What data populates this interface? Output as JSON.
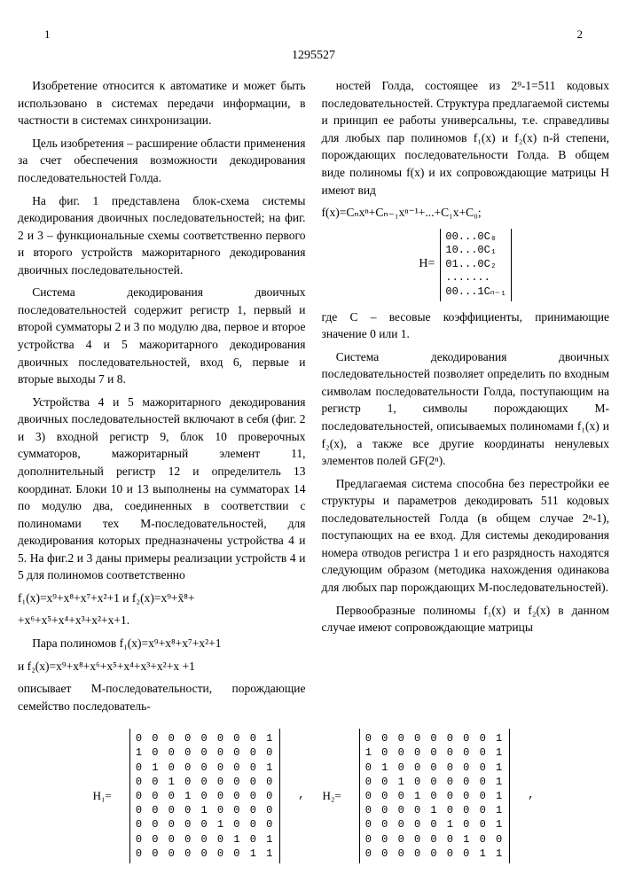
{
  "header": {
    "page_left": "1",
    "page_right": "2",
    "patent_number": "1295527"
  },
  "line_numbers": [
    "5",
    "10",
    "15",
    "20",
    "25",
    "30",
    "35",
    "40"
  ],
  "col1": {
    "p1": "Изобретение относится к автоматике и может быть использовано в системах передачи информации, в частности в системах синхронизации.",
    "p2": "Цель изобретения – расширение области применения за счет обеспечения возможности декодирования последовательностей Голда.",
    "p3": "На фиг. 1 представлена блок-схема системы декодирования двоичных последовательностей; на фиг. 2 и 3 – функциональные схемы соответственно первого и второго устройств мажоритарного декодирования двоичных последовательностей.",
    "p4": "Система декодирования двоичных последовательностей содержит регистр 1, первый и второй сумматоры 2 и 3 по модулю два, первое и второе устройства 4 и 5 мажоритарного декодирования двоичных последовательностей, вход 6, первые и вторые выходы 7 и 8.",
    "p5": "Устройства 4 и 5 мажоритарного декодирования двоичных последовательностей включают в себя (фиг. 2 и 3) входной регистр 9, блок 10 проверочных сумматоров, мажоритарный элемент 11, дополнительный регистр 12 и определитель 13 координат. Блоки 10 и 13 выполнены на сумматорах 14 по модулю два, соединенных в соответствии с полиномами тех М-последовательностей, для декодирования которых предназначены устройства 4 и 5. На фиг.2 и 3 даны примеры реализации устройств 4 и 5 для полиномов соответственно",
    "formula1": "f₁(x)=x⁹+x⁸+x⁷+x²+1 и f₂(x)=x⁹+x̄⁸+",
    "formula1b": "+x⁶+x⁵+x⁴+x³+x²+x+1.",
    "p6a": "Пара полиномов f₁(x)=x⁹+x⁸+x⁷+x²+1",
    "p6b": "и f₂(x)=x⁹+x⁸+x⁶+x⁵+x⁴+x³+x²+x +1",
    "p6c": "описывает М-последовательности, порождающие семейство последователь-"
  },
  "col2": {
    "p1": "ностей Голда, состоящее из 2⁹-1=511 кодовых последовательностей. Структура предлагаемой системы и принцип ее работы универсальны, т.е. справедливы для любых пар полиномов f₁(x) и f₂(x) n-й степени, порождающих последовательности Голда. В общем виде полиномы f(x) и их сопровождающие матрицы H имеют вид",
    "formula2": "f(x)=Cₙxⁿ+Cₙ₋₁xⁿ⁻¹+...+C₁x+C₀;",
    "matrix_h_rows": [
      "00...0C₀",
      "10...0C₁",
      "01...0C₂",
      ".......",
      "00...1Cₙ₋₁"
    ],
    "matrix_h_label": "H=",
    "p2": "где C – весовые коэффициенты, принимающие значение 0 или 1.",
    "p3": "Система декодирования двоичных последовательностей позволяет определить по входным символам последовательности Голда, поступающим на регистр 1, символы порождающих М-последовательностей, описываемых полиномами f₁(x) и f₂(x), а также все другие координаты ненулевых элементов полей GF(2ⁿ).",
    "p4": "Предлагаемая система способна без перестройки ее структуры и параметров декодировать 511 кодовых последовательностей Голда (в общем случае 2ⁿ-1), поступающих на ее вход. Для системы декодирования номера отводов регистра 1 и его разрядность находятся следующим образом (методика нахождения одинакова для любых пар порождающих М-последовательностей).",
    "p5": "Первообразные полиномы f₁(x) и f₂(x) в данном случае имеют сопровождающие матрицы"
  },
  "matrices": {
    "h1_label": "H₁=",
    "h1_rows": [
      "0 0 0 0 0 0 0 0 1",
      "1 0 0 0 0 0 0 0 0",
      "0 1 0 0 0 0 0 0 1",
      "0 0 1 0 0 0 0 0 0",
      "0 0 0 1 0 0 0 0 0",
      "0 0 0 0 1 0 0 0 0",
      "0 0 0 0 0 1 0 0 0",
      "0 0 0 0 0 0 1 0 1",
      "0 0 0 0 0 0 0 1 1"
    ],
    "h2_label": "H₂=",
    "h2_rows": [
      "0 0 0 0 0 0 0 0 1",
      "1 0 0 0 0 0 0 0 1",
      "0 1 0 0 0 0 0 0 1",
      "0 0 1 0 0 0 0 0 1",
      "0 0 0 1 0 0 0 0 1",
      "0 0 0 0 1 0 0 0 1",
      "0 0 0 0 0 1 0 0 1",
      "0 0 0 0 0 0 1 0 0",
      "0 0 0 0 0 0 0 1 1"
    ],
    "trailing": ","
  }
}
